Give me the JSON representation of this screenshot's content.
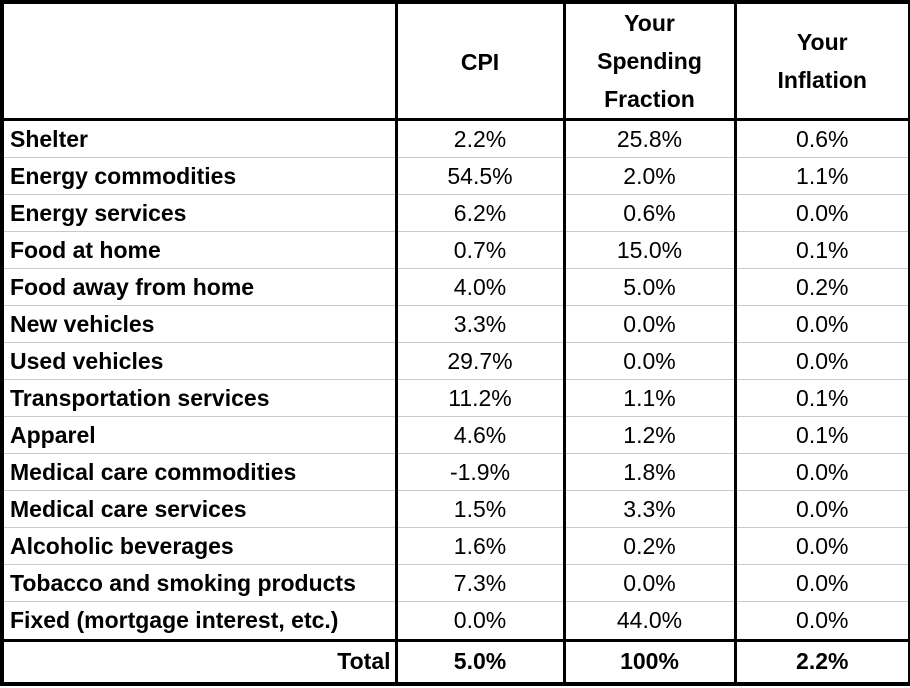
{
  "chart_data": {
    "type": "table",
    "columns": [
      "",
      "CPI",
      "Your Spending Fraction",
      "Your Inflation"
    ],
    "rows": [
      [
        "Shelter",
        "2.2%",
        "25.8%",
        "0.6%"
      ],
      [
        "Energy commodities",
        "54.5%",
        "2.0%",
        "1.1%"
      ],
      [
        "Energy services",
        "6.2%",
        "0.6%",
        "0.0%"
      ],
      [
        "Food at home",
        "0.7%",
        "15.0%",
        "0.1%"
      ],
      [
        "Food away from home",
        "4.0%",
        "5.0%",
        "0.2%"
      ],
      [
        "New vehicles",
        "3.3%",
        "0.0%",
        "0.0%"
      ],
      [
        "Used vehicles",
        "29.7%",
        "0.0%",
        "0.0%"
      ],
      [
        "Transportation services",
        "11.2%",
        "1.1%",
        "0.1%"
      ],
      [
        "Apparel",
        "4.6%",
        "1.2%",
        "0.1%"
      ],
      [
        "Medical care commodities",
        "-1.9%",
        "1.8%",
        "0.0%"
      ],
      [
        "Medical care services",
        "1.5%",
        "3.3%",
        "0.0%"
      ],
      [
        "Alcoholic beverages",
        "1.6%",
        "0.2%",
        "0.0%"
      ],
      [
        "Tobacco and smoking products",
        "7.3%",
        "0.0%",
        "0.0%"
      ],
      [
        "Fixed (mortgage interest, etc.)",
        "0.0%",
        "44.0%",
        "0.0%"
      ]
    ],
    "total_row": [
      "Total",
      "5.0%",
      "100%",
      "2.2%"
    ],
    "colors": {
      "text": "#000000",
      "background": "#ffffff",
      "strong_border": "#000000",
      "row_divider": "#c9c9c9"
    }
  }
}
